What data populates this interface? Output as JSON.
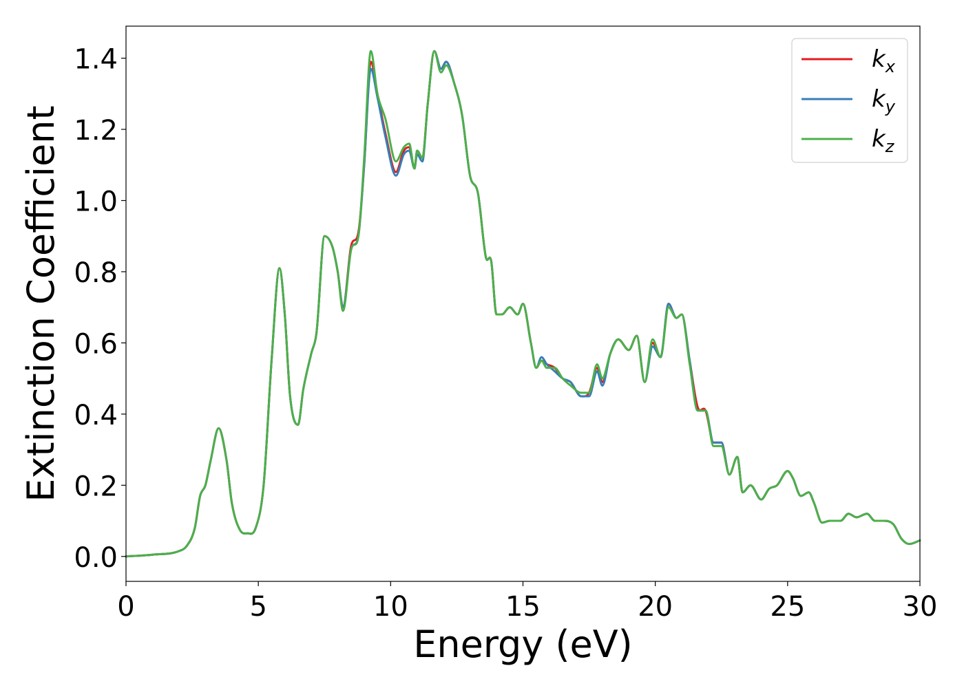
{
  "chart_data": {
    "type": "line",
    "xlabel": "Energy (eV)",
    "ylabel": "Extinction Coefficient",
    "xlim": [
      0,
      30
    ],
    "ylim": [
      -0.07,
      1.49
    ],
    "xticks": [
      0,
      5,
      10,
      15,
      20,
      25,
      30
    ],
    "xtick_labels": [
      "0",
      "5",
      "10",
      "15",
      "20",
      "25",
      "30"
    ],
    "yticks": [
      0.0,
      0.2,
      0.4,
      0.6,
      0.8,
      1.0,
      1.2,
      1.4
    ],
    "ytick_labels": [
      "0.0",
      "0.2",
      "0.4",
      "0.6",
      "0.8",
      "1.0",
      "1.2",
      "1.4"
    ],
    "grid": false,
    "legend_position": "top-right",
    "series": [
      {
        "name": "k_x",
        "label_base": "k",
        "label_sub": "x",
        "color": "#e41a1c",
        "x": [
          0,
          1,
          2,
          2.3,
          2.6,
          2.8,
          3.0,
          3.2,
          3.5,
          3.8,
          4.0,
          4.3,
          4.6,
          4.9,
          5.2,
          5.5,
          5.8,
          6.0,
          6.2,
          6.5,
          6.7,
          7.0,
          7.2,
          7.5,
          7.8,
          8.0,
          8.2,
          8.5,
          8.8,
          9.0,
          9.25,
          9.5,
          9.8,
          10.2,
          10.5,
          10.7,
          10.9,
          11.0,
          11.2,
          11.4,
          11.65,
          11.9,
          12.1,
          12.4,
          12.7,
          13.0,
          13.3,
          13.6,
          13.8,
          14.0,
          14.2,
          14.5,
          14.8,
          15.0,
          15.3,
          15.5,
          15.7,
          15.9,
          16.2,
          16.5,
          16.8,
          17.2,
          17.5,
          17.8,
          18.0,
          18.3,
          18.6,
          19.0,
          19.3,
          19.6,
          19.9,
          20.2,
          20.5,
          20.8,
          21.0,
          21.3,
          21.6,
          21.9,
          22.2,
          22.5,
          22.8,
          23.1,
          23.3,
          23.6,
          24.0,
          24.3,
          24.6,
          25.0,
          25.2,
          25.5,
          25.8,
          26.0,
          26.3,
          26.6,
          27.0,
          27.3,
          27.6,
          28.0,
          28.3,
          28.6,
          29.0,
          29.3,
          29.6,
          30.0
        ],
        "values": [
          0.0,
          0.005,
          0.015,
          0.03,
          0.08,
          0.17,
          0.2,
          0.27,
          0.36,
          0.27,
          0.15,
          0.075,
          0.065,
          0.08,
          0.2,
          0.55,
          0.81,
          0.68,
          0.45,
          0.37,
          0.47,
          0.57,
          0.63,
          0.9,
          0.87,
          0.8,
          0.7,
          0.87,
          0.92,
          1.1,
          1.39,
          1.3,
          1.19,
          1.08,
          1.14,
          1.15,
          1.09,
          1.14,
          1.12,
          1.27,
          1.42,
          1.37,
          1.39,
          1.33,
          1.24,
          1.07,
          1.02,
          0.84,
          0.83,
          0.68,
          0.68,
          0.7,
          0.68,
          0.71,
          0.6,
          0.53,
          0.55,
          0.54,
          0.53,
          0.5,
          0.49,
          0.45,
          0.46,
          0.53,
          0.49,
          0.57,
          0.61,
          0.58,
          0.62,
          0.49,
          0.6,
          0.56,
          0.71,
          0.67,
          0.68,
          0.55,
          0.42,
          0.41,
          0.32,
          0.32,
          0.23,
          0.28,
          0.18,
          0.2,
          0.16,
          0.19,
          0.2,
          0.24,
          0.22,
          0.17,
          0.18,
          0.15,
          0.095,
          0.1,
          0.1,
          0.12,
          0.11,
          0.12,
          0.1,
          0.1,
          0.09,
          0.05,
          0.035,
          0.045
        ]
      },
      {
        "name": "k_y",
        "label_base": "k",
        "label_sub": "y",
        "color": "#377eb8",
        "x": [
          0,
          1,
          2,
          2.3,
          2.6,
          2.8,
          3.0,
          3.2,
          3.5,
          3.8,
          4.0,
          4.3,
          4.6,
          4.9,
          5.2,
          5.5,
          5.8,
          6.0,
          6.2,
          6.5,
          6.7,
          7.0,
          7.2,
          7.5,
          7.8,
          8.0,
          8.2,
          8.5,
          8.8,
          9.0,
          9.25,
          9.5,
          9.8,
          10.2,
          10.5,
          10.7,
          10.9,
          11.0,
          11.2,
          11.4,
          11.65,
          11.9,
          12.1,
          12.4,
          12.7,
          13.0,
          13.3,
          13.6,
          13.8,
          14.0,
          14.2,
          14.5,
          14.8,
          15.0,
          15.3,
          15.5,
          15.7,
          15.9,
          16.2,
          16.5,
          16.8,
          17.2,
          17.5,
          17.8,
          18.0,
          18.3,
          18.6,
          19.0,
          19.3,
          19.6,
          19.9,
          20.2,
          20.5,
          20.8,
          21.0,
          21.3,
          21.6,
          21.9,
          22.2,
          22.5,
          22.8,
          23.1,
          23.3,
          23.6,
          24.0,
          24.3,
          24.6,
          25.0,
          25.2,
          25.5,
          25.8,
          26.0,
          26.3,
          26.6,
          27.0,
          27.3,
          27.6,
          28.0,
          28.3,
          28.6,
          29.0,
          29.3,
          29.6,
          30.0
        ],
        "values": [
          0.0,
          0.005,
          0.015,
          0.03,
          0.08,
          0.17,
          0.2,
          0.27,
          0.36,
          0.27,
          0.15,
          0.075,
          0.065,
          0.08,
          0.2,
          0.55,
          0.81,
          0.68,
          0.45,
          0.37,
          0.47,
          0.57,
          0.63,
          0.9,
          0.87,
          0.8,
          0.7,
          0.86,
          0.91,
          1.1,
          1.37,
          1.29,
          1.18,
          1.07,
          1.13,
          1.14,
          1.09,
          1.13,
          1.11,
          1.27,
          1.42,
          1.37,
          1.39,
          1.33,
          1.24,
          1.07,
          1.02,
          0.84,
          0.83,
          0.68,
          0.68,
          0.7,
          0.68,
          0.71,
          0.6,
          0.53,
          0.56,
          0.54,
          0.52,
          0.5,
          0.49,
          0.45,
          0.45,
          0.52,
          0.48,
          0.57,
          0.61,
          0.58,
          0.62,
          0.49,
          0.59,
          0.56,
          0.71,
          0.67,
          0.68,
          0.55,
          0.41,
          0.41,
          0.32,
          0.32,
          0.23,
          0.28,
          0.18,
          0.2,
          0.16,
          0.19,
          0.2,
          0.24,
          0.22,
          0.17,
          0.18,
          0.15,
          0.095,
          0.1,
          0.1,
          0.12,
          0.11,
          0.12,
          0.1,
          0.1,
          0.09,
          0.05,
          0.035,
          0.045
        ]
      },
      {
        "name": "k_z",
        "label_base": "k",
        "label_sub": "z",
        "color": "#4daf4a",
        "x": [
          0,
          1,
          2,
          2.3,
          2.6,
          2.8,
          3.0,
          3.2,
          3.5,
          3.8,
          4.0,
          4.3,
          4.6,
          4.9,
          5.2,
          5.5,
          5.8,
          6.0,
          6.2,
          6.5,
          6.7,
          7.0,
          7.2,
          7.5,
          7.8,
          8.0,
          8.2,
          8.5,
          8.8,
          9.0,
          9.25,
          9.5,
          9.8,
          10.2,
          10.5,
          10.7,
          10.9,
          11.0,
          11.2,
          11.4,
          11.65,
          11.9,
          12.1,
          12.4,
          12.7,
          13.0,
          13.3,
          13.6,
          13.8,
          14.0,
          14.2,
          14.5,
          14.8,
          15.0,
          15.3,
          15.5,
          15.7,
          15.9,
          16.2,
          16.5,
          16.8,
          17.2,
          17.5,
          17.8,
          18.0,
          18.3,
          18.6,
          19.0,
          19.3,
          19.6,
          19.9,
          20.2,
          20.5,
          20.8,
          21.0,
          21.3,
          21.6,
          21.9,
          22.2,
          22.5,
          22.8,
          23.1,
          23.3,
          23.6,
          24.0,
          24.3,
          24.6,
          25.0,
          25.2,
          25.5,
          25.8,
          26.0,
          26.3,
          26.6,
          27.0,
          27.3,
          27.6,
          28.0,
          28.3,
          28.6,
          29.0,
          29.3,
          29.6,
          30.0
        ],
        "values": [
          0.0,
          0.005,
          0.015,
          0.03,
          0.08,
          0.17,
          0.2,
          0.27,
          0.36,
          0.27,
          0.15,
          0.075,
          0.065,
          0.08,
          0.2,
          0.55,
          0.81,
          0.68,
          0.45,
          0.37,
          0.47,
          0.57,
          0.63,
          0.9,
          0.87,
          0.8,
          0.69,
          0.86,
          0.91,
          1.12,
          1.42,
          1.3,
          1.23,
          1.11,
          1.15,
          1.16,
          1.09,
          1.14,
          1.12,
          1.27,
          1.42,
          1.36,
          1.38,
          1.33,
          1.24,
          1.07,
          1.02,
          0.84,
          0.83,
          0.68,
          0.68,
          0.7,
          0.68,
          0.71,
          0.6,
          0.53,
          0.55,
          0.53,
          0.53,
          0.5,
          0.48,
          0.46,
          0.46,
          0.54,
          0.5,
          0.57,
          0.61,
          0.58,
          0.62,
          0.49,
          0.61,
          0.56,
          0.7,
          0.67,
          0.68,
          0.54,
          0.41,
          0.41,
          0.31,
          0.31,
          0.23,
          0.28,
          0.18,
          0.2,
          0.16,
          0.19,
          0.2,
          0.24,
          0.22,
          0.17,
          0.18,
          0.15,
          0.095,
          0.1,
          0.1,
          0.12,
          0.11,
          0.12,
          0.1,
          0.1,
          0.09,
          0.05,
          0.035,
          0.045
        ]
      }
    ]
  }
}
